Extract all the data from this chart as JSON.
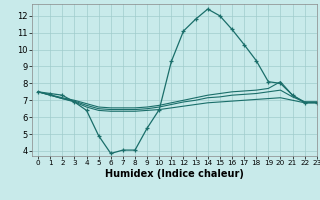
{
  "xlabel": "Humidex (Indice chaleur)",
  "background_color": "#c8eaea",
  "grid_color": "#a0cccc",
  "line_color": "#1a6e6a",
  "xlim": [
    -0.5,
    23
  ],
  "ylim": [
    3.7,
    12.7
  ],
  "x_ticks": [
    0,
    1,
    2,
    3,
    4,
    5,
    6,
    7,
    8,
    9,
    10,
    11,
    12,
    13,
    14,
    15,
    16,
    17,
    18,
    19,
    20,
    21,
    22,
    23
  ],
  "y_ticks": [
    4,
    5,
    6,
    7,
    8,
    9,
    10,
    11,
    12
  ],
  "line1_x": [
    0,
    1,
    2,
    3,
    4,
    5,
    6,
    7,
    8,
    9,
    10,
    11,
    12,
    13,
    14,
    15,
    16,
    17,
    18,
    19,
    20,
    21,
    22,
    23
  ],
  "line1_y": [
    7.5,
    7.4,
    7.3,
    6.9,
    6.4,
    4.9,
    3.85,
    4.05,
    4.05,
    5.35,
    6.45,
    9.3,
    11.1,
    11.8,
    12.4,
    12.0,
    11.2,
    10.3,
    9.35,
    8.1,
    8.0,
    7.3,
    6.85,
    6.85
  ],
  "line2_x": [
    0,
    2,
    3,
    4,
    5,
    6,
    7,
    8,
    9,
    10,
    11,
    12,
    13,
    14,
    15,
    16,
    17,
    18,
    19,
    20,
    21,
    22,
    23
  ],
  "line2_y": [
    7.5,
    7.1,
    6.9,
    6.6,
    6.4,
    6.35,
    6.35,
    6.35,
    6.4,
    6.45,
    6.55,
    6.65,
    6.75,
    6.85,
    6.9,
    6.95,
    7.0,
    7.05,
    7.1,
    7.15,
    7.0,
    6.85,
    6.85
  ],
  "line3_x": [
    0,
    2,
    3,
    4,
    5,
    6,
    7,
    8,
    9,
    10,
    11,
    12,
    13,
    14,
    15,
    16,
    17,
    18,
    19,
    20,
    21,
    22,
    23
  ],
  "line3_y": [
    7.5,
    7.1,
    6.95,
    6.7,
    6.5,
    6.45,
    6.45,
    6.45,
    6.5,
    6.6,
    6.75,
    6.9,
    7.0,
    7.15,
    7.2,
    7.3,
    7.35,
    7.4,
    7.5,
    7.6,
    7.2,
    6.9,
    6.9
  ],
  "line4_x": [
    0,
    2,
    3,
    4,
    5,
    6,
    7,
    8,
    9,
    10,
    11,
    12,
    13,
    14,
    15,
    16,
    17,
    18,
    19,
    20,
    21,
    22,
    23
  ],
  "line4_y": [
    7.5,
    7.15,
    7.0,
    6.8,
    6.6,
    6.55,
    6.55,
    6.55,
    6.6,
    6.7,
    6.85,
    7.0,
    7.15,
    7.3,
    7.4,
    7.5,
    7.55,
    7.6,
    7.7,
    8.1,
    7.3,
    6.9,
    6.9
  ]
}
